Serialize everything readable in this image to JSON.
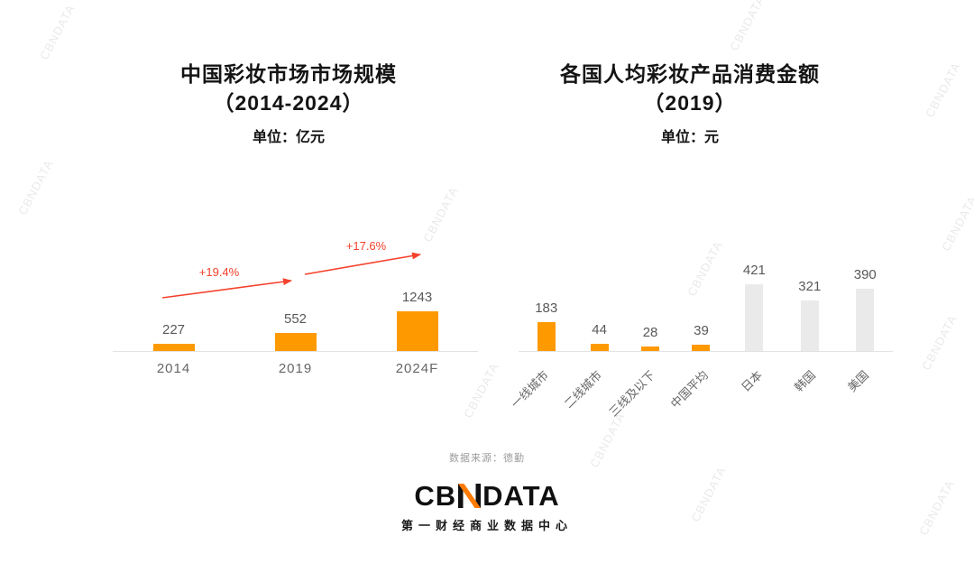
{
  "chart_data": [
    {
      "type": "bar",
      "title": "中国彩妆市场市场规模（2014-2024）",
      "title_lines": [
        "中国彩妆市场市场规模",
        "（2014-2024）"
      ],
      "unit_label": "单位：亿元",
      "categories": [
        "2014",
        "2019",
        "2024F"
      ],
      "values": [
        227,
        552,
        1243
      ],
      "bar_colors": [
        "#FF9900",
        "#FF9900",
        "#FF9900"
      ],
      "ylim": [
        0,
        1400
      ],
      "grid": false,
      "legend": "none",
      "annotations": [
        {
          "type": "growth-arrow",
          "label": "+19.4%",
          "from": "2014",
          "to": "2019"
        },
        {
          "type": "growth-arrow",
          "label": "+17.6%",
          "from": "2019",
          "to": "2024F"
        }
      ]
    },
    {
      "type": "bar",
      "title": "各国人均彩妆产品消费金额（2019）",
      "title_lines": [
        "各国人均彩妆产品消费金额",
        "（2019）"
      ],
      "unit_label": "单位：元",
      "categories": [
        "一线城市",
        "二线城市",
        "三线及以下",
        "中国平均",
        "日本",
        "韩国",
        "美国"
      ],
      "values": [
        183,
        44,
        28,
        39,
        421,
        321,
        390
      ],
      "bar_colors": [
        "#FF9900",
        "#FF9900",
        "#FF9900",
        "#FF9900",
        "#EAEAEA",
        "#EAEAEA",
        "#EAEAEA"
      ],
      "ylim": [
        0,
        450
      ],
      "grid": false,
      "legend": "none"
    }
  ],
  "colors": {
    "bar_orange": "#FF9900",
    "bar_gray": "#EAEAEA",
    "arrow_red": "#F5412D",
    "logo_black": "#111111",
    "logo_orange": "#FF7A00"
  },
  "footer": {
    "source": "数据来源：德勤",
    "logo_cb": "CB",
    "logo_data": "DATA",
    "logo_text": "CBNDATA",
    "logo_subtitle": "第一财经商业数据中心"
  },
  "watermark": {
    "text": "CBNDATA"
  }
}
